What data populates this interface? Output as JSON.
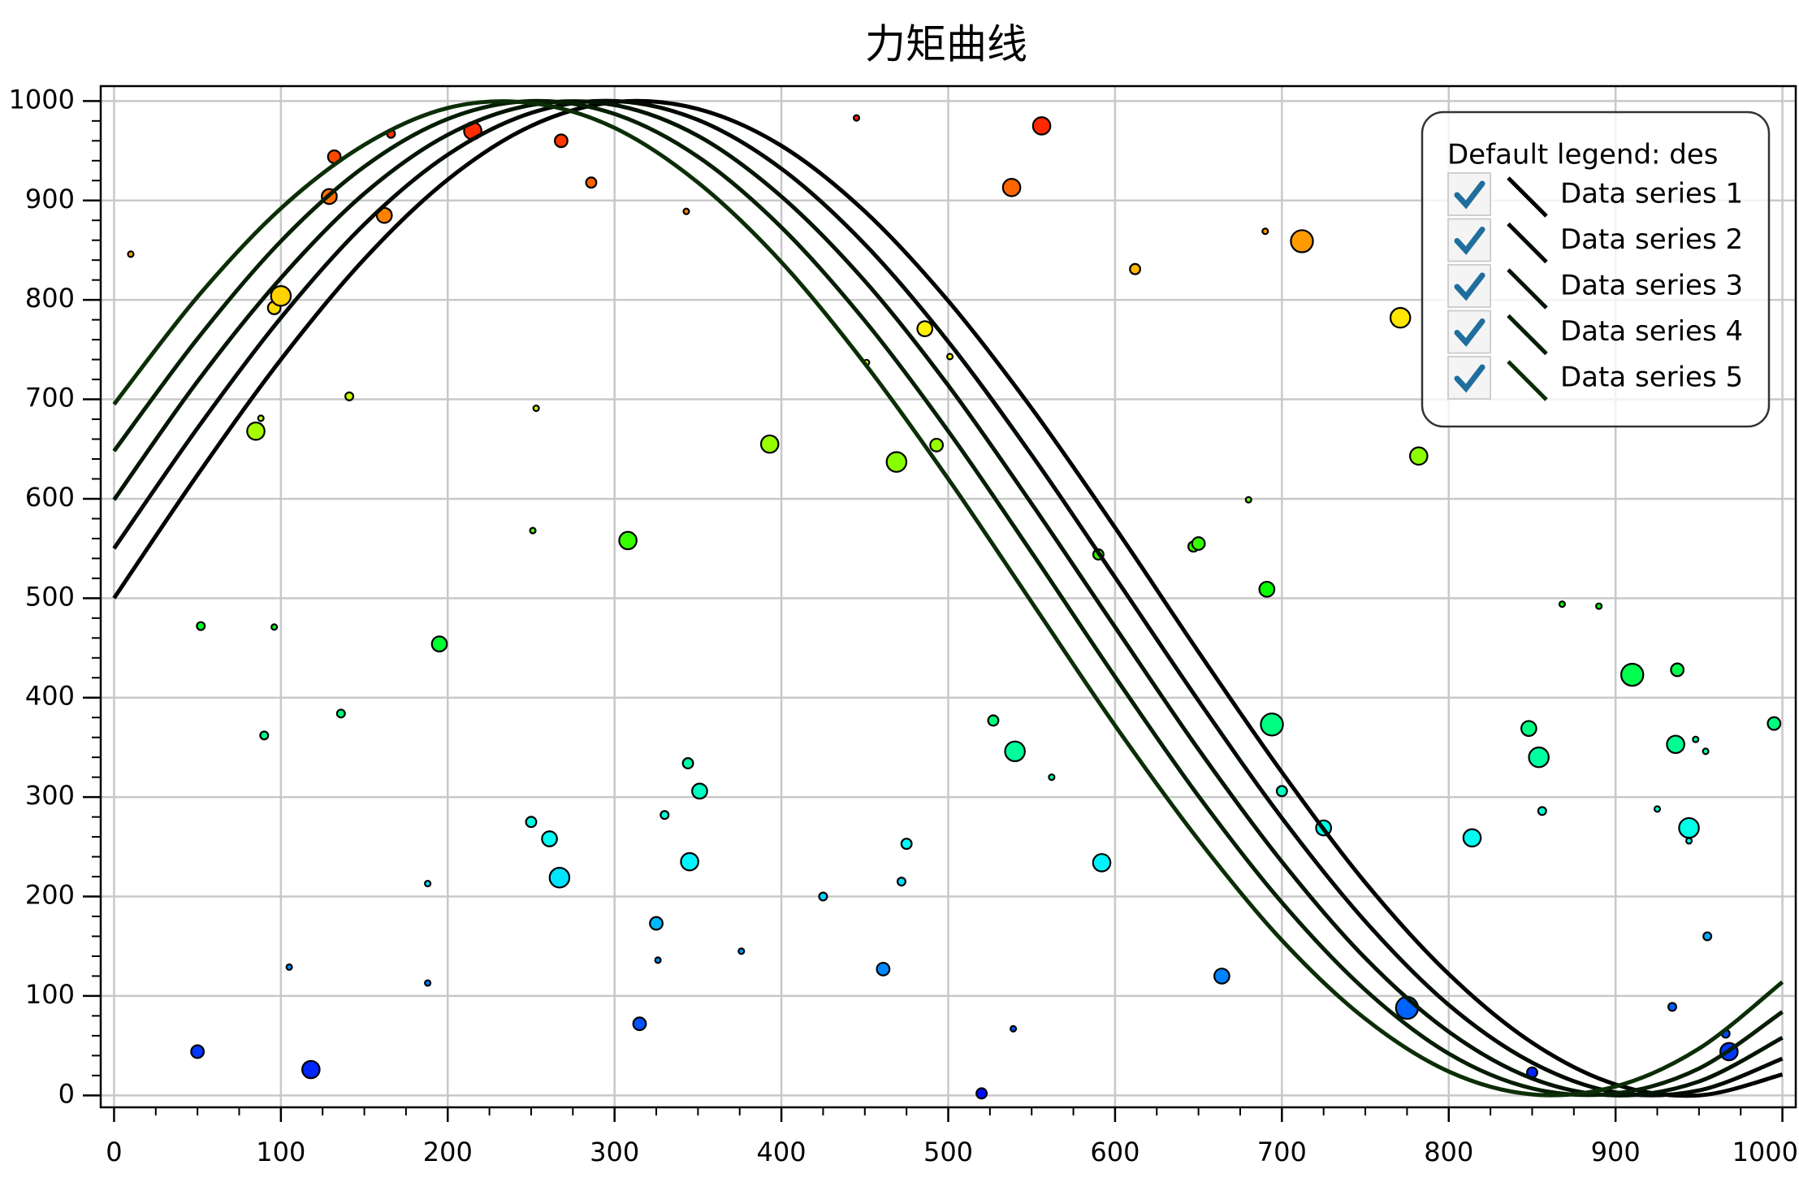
{
  "chart_data": {
    "type": "line",
    "title": "力矩曲线",
    "x": [
      0,
      50,
      100,
      150,
      200,
      250,
      300,
      350,
      400,
      450,
      500,
      550,
      600,
      650,
      700,
      750,
      800,
      850,
      900,
      950,
      1000
    ],
    "series": [
      {
        "name": "Data series 1",
        "color": "#000000",
        "values": [
          500,
          624,
          740,
          841,
          921,
          975,
          999,
          992,
          955,
          889,
          799,
          691,
          571,
          446,
          325,
          214,
          122,
          53,
          11,
          0,
          21
        ]
      },
      {
        "name": "Data series 2",
        "color": "#020a02",
        "values": [
          550,
          671,
          782,
          876,
          946,
          988,
          1000,
          981,
          932,
          856,
          758,
          644,
          521,
          397,
          279,
          175,
          91,
          33,
          3,
          5,
          37
        ]
      },
      {
        "name": "Data series 3",
        "color": "#041404",
        "values": [
          599,
          718,
          822,
          907,
          966,
          996,
          996,
          965,
          904,
          819,
          714,
          595,
          471,
          348,
          235,
          138,
          64,
          17,
          0,
          14,
          58
        ]
      },
      {
        "name": "Data series 4",
        "color": "#061e04",
        "values": [
          648,
          761,
          859,
          934,
          982,
          1000,
          987,
          944,
          873,
          779,
          668,
          546,
          421,
          301,
          194,
          106,
          42,
          7,
          2,
          27,
          84
        ]
      },
      {
        "name": "Data series 5",
        "color": "#0b2e06",
        "values": [
          695,
          803,
          892,
          956,
          993,
          998,
          973,
          918,
          838,
          736,
          620,
          496,
          372,
          257,
          156,
          77,
          24,
          1,
          9,
          47,
          114
        ]
      }
    ],
    "scatter": {
      "x": [
        10,
        52,
        50,
        90,
        85,
        88,
        96,
        100,
        96,
        105,
        118,
        129,
        132,
        136,
        141,
        162,
        166,
        188,
        188,
        195,
        215,
        250,
        251,
        253,
        261,
        267,
        268,
        286,
        308,
        315,
        325,
        326,
        330,
        343,
        344,
        345,
        351,
        376,
        393,
        425,
        445,
        451,
        461,
        469,
        472,
        475,
        486,
        493,
        501,
        520,
        527,
        538,
        540,
        539,
        556,
        562,
        590,
        592,
        612,
        647,
        650,
        664,
        680,
        690,
        691,
        694,
        700,
        712,
        725,
        771,
        775,
        782,
        814,
        848,
        850,
        854,
        856,
        868,
        890,
        910,
        925,
        934,
        936,
        937,
        944,
        944,
        948,
        954,
        955,
        966,
        968,
        995
      ],
      "y": [
        846,
        472,
        44,
        362,
        668,
        681,
        792,
        804,
        471,
        129,
        26,
        904,
        944,
        384,
        703,
        885,
        967,
        213,
        113,
        454,
        970,
        275,
        568,
        691,
        258,
        219,
        960,
        918,
        558,
        72,
        173,
        136,
        282,
        889,
        334,
        235,
        306,
        145,
        655,
        200,
        983,
        737,
        127,
        637,
        215,
        253,
        771,
        654,
        743,
        2,
        377,
        913,
        346,
        67,
        975,
        320,
        544,
        234,
        831,
        552,
        555,
        120,
        599,
        869,
        509,
        373,
        306,
        859,
        269,
        782,
        88,
        643,
        259,
        369,
        23,
        340,
        286,
        494,
        492,
        423,
        288,
        89,
        353,
        428,
        269,
        256,
        358,
        346,
        160,
        62,
        44,
        374
      ],
      "size": [
        1,
        2,
        4,
        2,
        6,
        1,
        4,
        7,
        1,
        1,
        6,
        5,
        4,
        2,
        2,
        5,
        2,
        1,
        1,
        5,
        6,
        3,
        1,
        1,
        5,
        7,
        4,
        3,
        6,
        4,
        4,
        1,
        2,
        1,
        3,
        6,
        5,
        1,
        6,
        2,
        1,
        1,
        4,
        7,
        2,
        3,
        5,
        4,
        1,
        3,
        3,
        6,
        7,
        1,
        6,
        1,
        3,
        6,
        3,
        3,
        4,
        5,
        1,
        1,
        5,
        8,
        3,
        8,
        5,
        7,
        8,
        6,
        6,
        5,
        3,
        7,
        2,
        1,
        1,
        8,
        1,
        2,
        6,
        4,
        7,
        1,
        1,
        1,
        2,
        2,
        6,
        4
      ]
    },
    "xlim": [
      -8,
      1008
    ],
    "ylim": [
      -12,
      1015
    ],
    "xticks": [
      0,
      100,
      200,
      300,
      400,
      500,
      600,
      700,
      800,
      900,
      1000
    ],
    "yticks": [
      0,
      100,
      200,
      300,
      400,
      500,
      600,
      700,
      800,
      900,
      1000
    ],
    "x_minor_divisions": 4,
    "y_minor_divisions": 5,
    "grid": true,
    "legend": {
      "title": "Default legend: des",
      "position": "top-right"
    }
  }
}
